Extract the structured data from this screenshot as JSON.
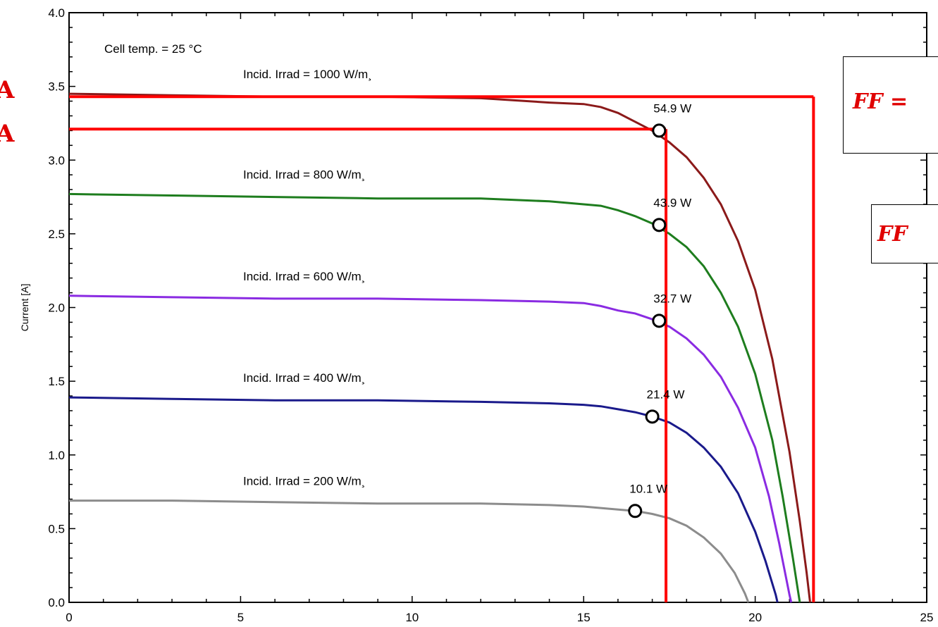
{
  "chart_data": {
    "type": "line",
    "xlim": [
      0,
      25
    ],
    "ylim": [
      0,
      4.0
    ],
    "x_ticks": [
      "0",
      "5",
      "10",
      "15",
      "20",
      "25"
    ],
    "y_ticks": [
      "0.0",
      "0.5",
      "1.0",
      "1.5",
      "2.0",
      "2.5",
      "3.0",
      "3.5",
      "4.0"
    ],
    "ylabel": "Current [A]",
    "xlabel": "",
    "grid": false,
    "annotation_temp": "Cell temp. =   25 °C",
    "series": [
      {
        "name": "Incid. Irrad = 1000 W/m²",
        "label_text": "Incid. Irrad = 1000 W/m¸",
        "color": "#8b1a1a",
        "points": [
          [
            0,
            3.45
          ],
          [
            3,
            3.44
          ],
          [
            6,
            3.43
          ],
          [
            9,
            3.43
          ],
          [
            12,
            3.42
          ],
          [
            14,
            3.39
          ],
          [
            15,
            3.38
          ],
          [
            15.5,
            3.36
          ],
          [
            16,
            3.32
          ],
          [
            16.5,
            3.26
          ],
          [
            17,
            3.2
          ],
          [
            17.5,
            3.12
          ],
          [
            18,
            3.02
          ],
          [
            18.5,
            2.88
          ],
          [
            19,
            2.7
          ],
          [
            19.5,
            2.45
          ],
          [
            20,
            2.12
          ],
          [
            20.5,
            1.65
          ],
          [
            21,
            1.02
          ],
          [
            21.3,
            0.55
          ],
          [
            21.5,
            0.2
          ],
          [
            21.6,
            0.0
          ]
        ],
        "mpp": [
          17.2,
          3.2
        ],
        "mpp_label": "54.9 W"
      },
      {
        "name": "Incid. Irrad = 800 W/m²",
        "label_text": "Incid. Irrad =  800 W/m¸",
        "color": "#1e7d1e",
        "points": [
          [
            0,
            2.77
          ],
          [
            3,
            2.76
          ],
          [
            6,
            2.75
          ],
          [
            9,
            2.74
          ],
          [
            12,
            2.74
          ],
          [
            14,
            2.72
          ],
          [
            15,
            2.7
          ],
          [
            15.5,
            2.69
          ],
          [
            16,
            2.66
          ],
          [
            16.5,
            2.62
          ],
          [
            17,
            2.57
          ],
          [
            17.5,
            2.5
          ],
          [
            18,
            2.41
          ],
          [
            18.5,
            2.28
          ],
          [
            19,
            2.1
          ],
          [
            19.5,
            1.87
          ],
          [
            20,
            1.55
          ],
          [
            20.5,
            1.1
          ],
          [
            20.8,
            0.72
          ],
          [
            21.1,
            0.3
          ],
          [
            21.3,
            0.0
          ]
        ],
        "mpp": [
          17.2,
          2.56
        ],
        "mpp_label": "43.9 W"
      },
      {
        "name": "Incid. Irrad = 600 W/m²",
        "label_text": "Incid. Irrad =  600 W/m¸",
        "color": "#8a2be2",
        "points": [
          [
            0,
            2.08
          ],
          [
            3,
            2.07
          ],
          [
            6,
            2.06
          ],
          [
            9,
            2.06
          ],
          [
            12,
            2.05
          ],
          [
            14,
            2.04
          ],
          [
            15,
            2.03
          ],
          [
            15.5,
            2.01
          ],
          [
            16,
            1.98
          ],
          [
            16.5,
            1.96
          ],
          [
            17,
            1.92
          ],
          [
            17.5,
            1.87
          ],
          [
            18,
            1.79
          ],
          [
            18.5,
            1.68
          ],
          [
            19,
            1.53
          ],
          [
            19.5,
            1.32
          ],
          [
            20,
            1.05
          ],
          [
            20.4,
            0.72
          ],
          [
            20.7,
            0.4
          ],
          [
            21.0,
            0.05
          ],
          [
            21.05,
            0.0
          ]
        ],
        "mpp": [
          17.2,
          1.91
        ],
        "mpp_label": "32.7 W"
      },
      {
        "name": "Incid. Irrad = 400 W/m²",
        "label_text": "Incid. Irrad =  400 W/m¸",
        "color": "#1a1a8b",
        "points": [
          [
            0,
            1.39
          ],
          [
            3,
            1.38
          ],
          [
            6,
            1.37
          ],
          [
            9,
            1.37
          ],
          [
            12,
            1.36
          ],
          [
            14,
            1.35
          ],
          [
            15,
            1.34
          ],
          [
            15.5,
            1.33
          ],
          [
            16,
            1.31
          ],
          [
            16.5,
            1.29
          ],
          [
            17,
            1.26
          ],
          [
            17.5,
            1.22
          ],
          [
            18,
            1.15
          ],
          [
            18.5,
            1.05
          ],
          [
            19,
            0.92
          ],
          [
            19.5,
            0.74
          ],
          [
            20,
            0.48
          ],
          [
            20.3,
            0.28
          ],
          [
            20.6,
            0.05
          ],
          [
            20.65,
            0.0
          ]
        ],
        "mpp": [
          17.0,
          1.26
        ],
        "mpp_label": "21.4 W"
      },
      {
        "name": "Incid. Irrad = 200 W/m²",
        "label_text": "Incid. Irrad =  200 W/m¸",
        "color": "#8c8c8c",
        "points": [
          [
            0,
            0.69
          ],
          [
            3,
            0.69
          ],
          [
            6,
            0.68
          ],
          [
            9,
            0.67
          ],
          [
            12,
            0.67
          ],
          [
            14,
            0.66
          ],
          [
            15,
            0.65
          ],
          [
            16,
            0.63
          ],
          [
            16.5,
            0.62
          ],
          [
            17,
            0.6
          ],
          [
            17.5,
            0.57
          ],
          [
            18,
            0.52
          ],
          [
            18.5,
            0.44
          ],
          [
            19,
            0.33
          ],
          [
            19.4,
            0.2
          ],
          [
            19.7,
            0.06
          ],
          [
            19.8,
            0.0
          ]
        ],
        "mpp": [
          16.5,
          0.62
        ],
        "mpp_label": "10.1 W"
      }
    ],
    "overlay_lines": {
      "color": "#ff0000",
      "isc_y": 3.43,
      "voc_x": 21.7,
      "impp_y": 3.21,
      "vmpp_x": 17.4
    },
    "overlays": {
      "ff_box_1_text": "FF =",
      "ff_box_2_text": "FF",
      "edge_letter_1": "A",
      "edge_letter_2": "A",
      "accent_color": "#e00000"
    }
  }
}
